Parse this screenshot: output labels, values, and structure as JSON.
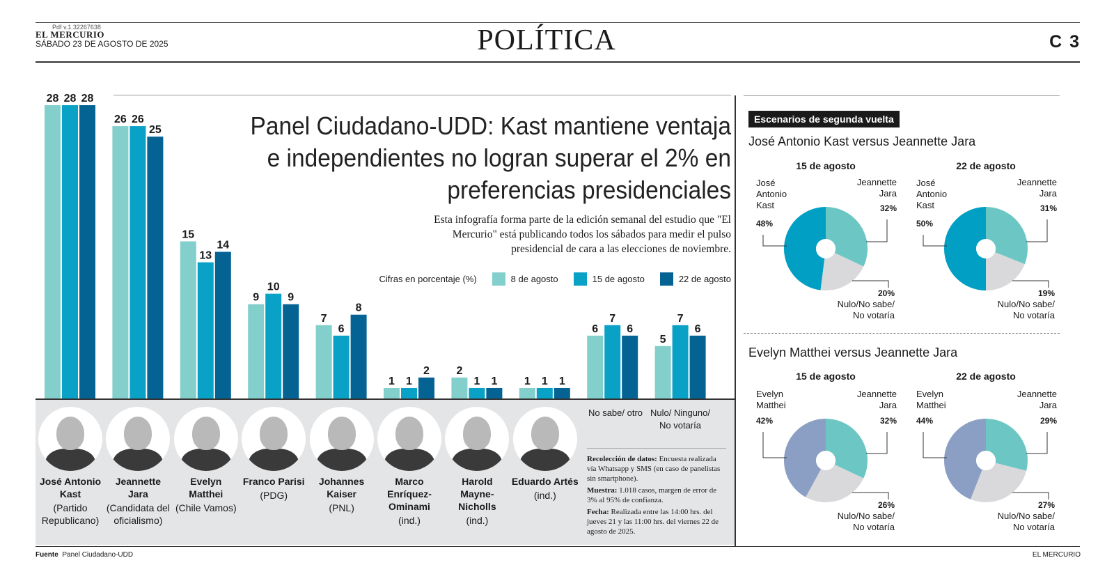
{
  "masthead": {
    "pdf_version": "Pdf v.1.32267638",
    "paper": "EL MERCURIO",
    "date": "SÁBADO 23 DE AGOSTO DE 2025",
    "section": "POLÍTICA",
    "page": "C 3"
  },
  "headline": "Panel Ciudadano-UDD: Kast mantiene ventaja e independientes no logran superar el 2% en preferencias presidenciales",
  "subhead": "Esta infografía forma parte de la edición semanal del estudio que \"El Mercurio\" está publicando todos los sábados para medir el pulso presidencial de cara a las elecciones de noviembre.",
  "legend": {
    "caption": "Cifras en porcentaje (%)",
    "items": [
      "8 de agosto",
      "15 de agosto",
      "22 de agosto"
    ]
  },
  "colors": {
    "series": [
      "#83cfcc",
      "#0aa1c7",
      "#056394"
    ],
    "donut_kast": "#019fc4",
    "donut_jara": "#6cc7c4",
    "donut_matthei": "#8a9fc3",
    "donut_nulo": "#d9d9db"
  },
  "chart_data": [
    {
      "type": "bar",
      "categories": [
        "José Antonio Kast",
        "Jeannette Jara",
        "Evelyn Matthei",
        "Franco Parisi",
        "Johannes Kaiser",
        "Marco Enríquez-Ominami",
        "Harold Mayne-Nicholls",
        "Eduardo Artés",
        "No sabe/ otro",
        "Nulo/ Ninguno/ No votaría"
      ],
      "series": [
        {
          "name": "8 de agosto",
          "values": [
            28,
            26,
            15,
            9,
            7,
            1,
            2,
            1,
            6,
            5
          ]
        },
        {
          "name": "15 de agosto",
          "values": [
            28,
            26,
            13,
            10,
            6,
            1,
            1,
            1,
            7,
            7
          ]
        },
        {
          "name": "22 de agosto",
          "values": [
            28,
            25,
            14,
            9,
            8,
            2,
            1,
            1,
            6,
            6
          ]
        }
      ],
      "ylim": [
        0,
        28
      ]
    },
    {
      "type": "pie",
      "scenario": "José Antonio Kast versus Jeannette Jara",
      "title": "15 de agosto",
      "slices": [
        {
          "label": "José Antonio Kast",
          "value": 48,
          "text": "48%"
        },
        {
          "label": "Jeannette Jara",
          "value": 32,
          "text": "32%"
        },
        {
          "label": "Nulo/No sabe/ No votaría",
          "value": 20,
          "text": "20%"
        }
      ]
    },
    {
      "type": "pie",
      "scenario": "José Antonio Kast versus Jeannette Jara",
      "title": "22 de agosto",
      "slices": [
        {
          "label": "José Antonio Kast",
          "value": 50,
          "text": "50%"
        },
        {
          "label": "Jeannette Jara",
          "value": 31,
          "text": "31%"
        },
        {
          "label": "Nulo/No sabe/ No votaría",
          "value": 19,
          "text": "19%"
        }
      ]
    },
    {
      "type": "pie",
      "scenario": "Evelyn Matthei versus Jeannette Jara",
      "title": "15 de agosto",
      "slices": [
        {
          "label": "Evelyn Matthei",
          "value": 42,
          "text": "42%"
        },
        {
          "label": "Jeannette Jara",
          "value": 32,
          "text": "32%"
        },
        {
          "label": "Nulo/No sabe/ No votaría",
          "value": 26,
          "text": "26%"
        }
      ]
    },
    {
      "type": "pie",
      "scenario": "Evelyn Matthei versus Jeannette Jara",
      "title": "22 de agosto",
      "slices": [
        {
          "label": "Evelyn Matthei",
          "value": 44,
          "text": "44%"
        },
        {
          "label": "Jeannette Jara",
          "value": 29,
          "text": "29%"
        },
        {
          "label": "Nulo/No sabe/ No votaría",
          "value": 27,
          "text": "27%"
        }
      ]
    }
  ],
  "candidates": [
    {
      "name": "José Antonio Kast",
      "party": "(Partido Republicano)"
    },
    {
      "name": "Jeannette Jara",
      "party": "(Candidata del oficialismo)"
    },
    {
      "name": "Evelyn Matthei",
      "party": "(Chile Vamos)"
    },
    {
      "name": "Franco Parisi",
      "party": "(PDG)"
    },
    {
      "name": "Johannes Kaiser",
      "party": "(PNL)"
    },
    {
      "name": "Marco Enríquez-Ominami",
      "party": "(ind.)"
    },
    {
      "name": "Harold Mayne-Nicholls",
      "party": "(ind.)"
    },
    {
      "name": "Eduardo Artés",
      "party": "(ind.)"
    }
  ],
  "extra_labels": [
    "No sabe/ otro",
    "Nulo/ Ninguno/ No votaría"
  ],
  "method": {
    "collection_label": "Recolección de datos:",
    "collection_text": " Encuesta realizada vía Whatsapp y SMS (en caso de panelistas sin smartphone).",
    "sample_label": "Muestra:",
    "sample_text": " 1.018 casos, margen de error de 3% al 95% de confianza.",
    "date_label": "Fecha:",
    "date_text": " Realizada entre las 14:00 hrs. del jueves 21 y las 11:00 hrs. del viernes 22 de agosto de 2025."
  },
  "right": {
    "tag": "Escenarios de segunda vuelta",
    "scenario1": "José Antonio Kast versus Jeannette Jara",
    "scenario2": "Evelyn Matthei versus Jeannette Jara",
    "nulo_label": "Nulo/No sabe/ No votaría"
  },
  "footer": {
    "source_label": "Fuente",
    "source": "Panel Ciudadano-UDD",
    "brand": "EL MERCURIO"
  }
}
